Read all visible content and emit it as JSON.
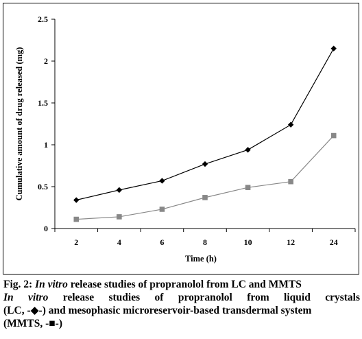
{
  "chart_data": {
    "type": "line",
    "categories": [
      "2",
      "4",
      "6",
      "8",
      "10",
      "12",
      "24"
    ],
    "xlabel": "Time (h)",
    "ylabel": "Cumulative amount of drug released (mg)",
    "ylim": [
      0,
      2.5
    ],
    "yticks": [
      "0",
      "0.5",
      "1",
      "1.5",
      "2",
      "2.5"
    ],
    "grid": false,
    "legend": "none",
    "series": [
      {
        "marker": "diamond",
        "color": "#000000",
        "values": [
          0.34,
          0.46,
          0.57,
          0.77,
          0.94,
          1.24,
          2.15
        ]
      },
      {
        "marker": "square",
        "color": "#888888",
        "values": [
          0.11,
          0.14,
          0.23,
          0.37,
          0.49,
          0.56,
          1.11
        ]
      }
    ]
  },
  "caption": {
    "fig_label": "Fig. 2:",
    "title_italic": "In vitro",
    "title_rest": "release studies of propranolol from LC  and MMTS",
    "desc_italic": "In vitro",
    "desc_line1_rest": "release studies of propranolol from liquid crystals",
    "desc_line2_a": "(LC, -",
    "desc_line2_symbol": "◆",
    "desc_line2_b": "-) and mesophasic microreservoir-based transdermal system",
    "desc_line3_a": "(MMTS, -",
    "desc_line3_symbol": "■",
    "desc_line3_b": "-)"
  }
}
